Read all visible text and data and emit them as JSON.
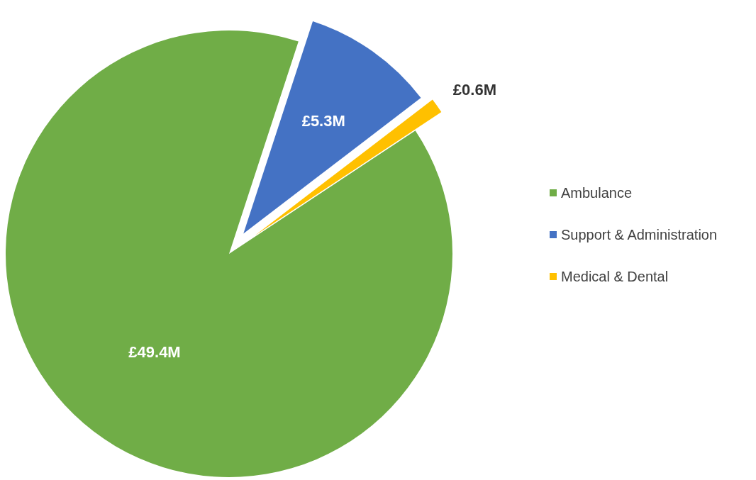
{
  "chart_data": {
    "type": "pie",
    "categories": [
      "Ambulance",
      "Support & Administration",
      "Medical & Dental"
    ],
    "values": [
      49.4,
      5.3,
      0.6
    ],
    "colors": [
      "#70ad47",
      "#4472c4",
      "#ffc000"
    ],
    "value_labels": [
      "£49.4M",
      "£5.3M",
      "£0.6M"
    ],
    "legend": "right"
  }
}
